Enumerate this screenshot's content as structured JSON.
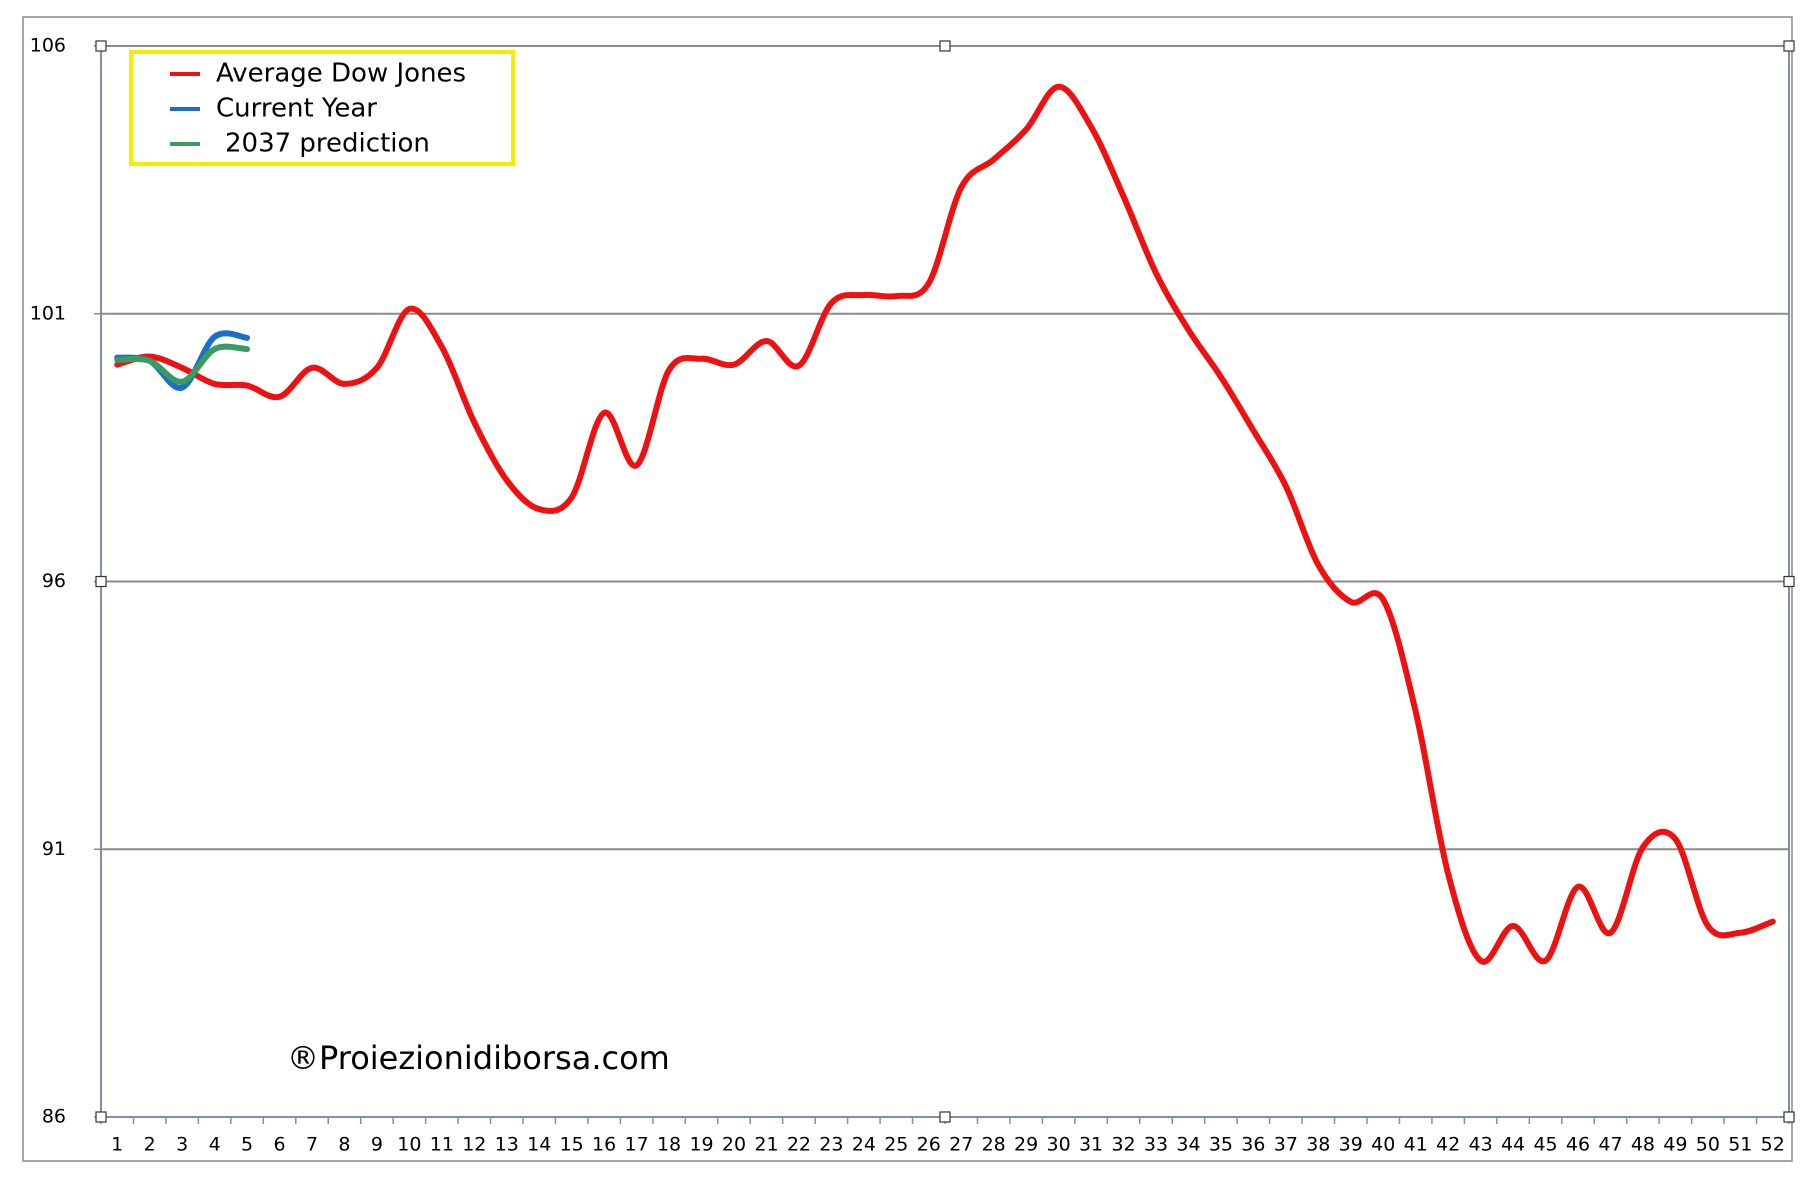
{
  "chart_data": {
    "type": "line",
    "categories": [
      "1",
      "2",
      "3",
      "4",
      "5",
      "6",
      "7",
      "8",
      "9",
      "10",
      "11",
      "12",
      "13",
      "14",
      "15",
      "16",
      "17",
      "18",
      "19",
      "20",
      "21",
      "22",
      "23",
      "24",
      "25",
      "26",
      "27",
      "28",
      "29",
      "30",
      "31",
      "32",
      "33",
      "34",
      "35",
      "36",
      "37",
      "38",
      "39",
      "40",
      "41",
      "42",
      "43",
      "44",
      "45",
      "46",
      "47",
      "48",
      "49",
      "50",
      "51",
      "52"
    ],
    "series": [
      {
        "name": "Average Dow Jones",
        "color": "#ee1111",
        "values": [
          100.05,
          100.2,
          99.99,
          99.69,
          99.66,
          99.45,
          99.99,
          99.69,
          99.99,
          101.09,
          100.38,
          98.97,
          97.89,
          97.35,
          97.57,
          99.15,
          98.17,
          99.95,
          100.16,
          100.05,
          100.49,
          100.03,
          101.2,
          101.35,
          101.33,
          101.57,
          103.36,
          103.88,
          104.44,
          105.24,
          104.49,
          103.19,
          101.76,
          100.7,
          99.82,
          98.82,
          97.78,
          96.31,
          95.62,
          95.66,
          93.57,
          90.54,
          88.92,
          89.57,
          88.92,
          90.3,
          89.44,
          91.04,
          91.19,
          89.57,
          89.44,
          89.65
        ]
      },
      {
        "name": "Current Year",
        "color": "#1a6fc9",
        "values": [
          100.18,
          100.12,
          99.62,
          100.57,
          100.55,
          null,
          null,
          null,
          null,
          null,
          null,
          null,
          null,
          null,
          null,
          null,
          null,
          null,
          null,
          null,
          null,
          null,
          null,
          null,
          null,
          null,
          null,
          null,
          null,
          null,
          null,
          null,
          null,
          null,
          null,
          null,
          null,
          null,
          null,
          null,
          null,
          null,
          null,
          null,
          null,
          null,
          null,
          null,
          null,
          null,
          null,
          null
        ]
      },
      {
        "name": "2037 prediction",
        "color": "#3a9a64",
        "values": [
          100.14,
          100.12,
          99.73,
          100.34,
          100.34,
          null,
          null,
          null,
          null,
          null,
          null,
          null,
          null,
          null,
          null,
          null,
          null,
          null,
          null,
          null,
          null,
          null,
          null,
          null,
          null,
          null,
          null,
          null,
          null,
          null,
          null,
          null,
          null,
          null,
          null,
          null,
          null,
          null,
          null,
          null,
          null,
          null,
          null,
          null,
          null,
          null,
          null,
          null,
          null,
          null,
          null,
          null
        ]
      }
    ],
    "ylim": [
      86,
      106
    ],
    "yticks": [
      86,
      91,
      96,
      101,
      106
    ],
    "grid": true,
    "legend": "top-left",
    "watermark": "®Proiezionidiborsa.com"
  }
}
